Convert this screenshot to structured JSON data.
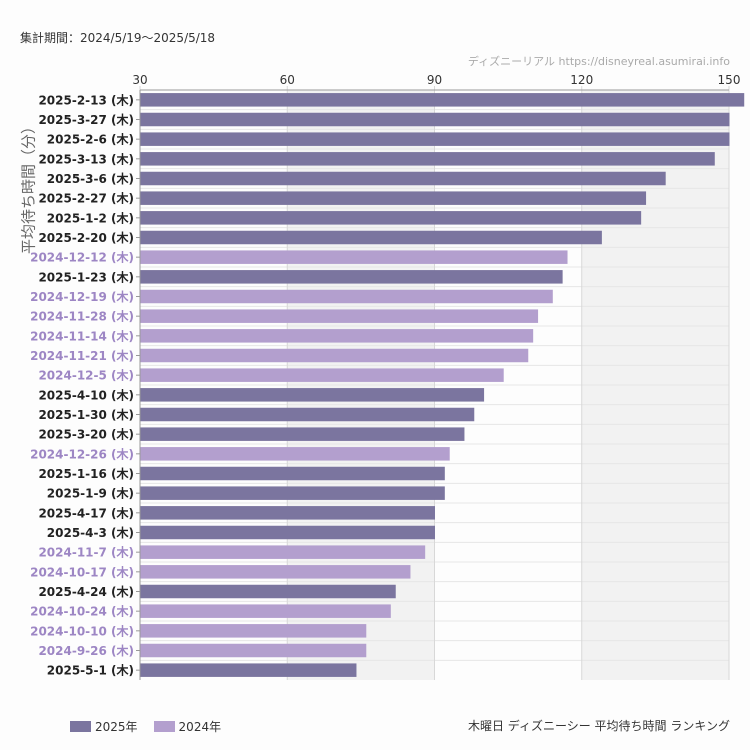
{
  "header": {
    "period": "集計期間：2024/5/19〜2025/5/18",
    "source": "ディズニーリアル  https://disneyreal.asumirai.info"
  },
  "footer": {
    "title": "木曜日 ディズニーシー 平均待ち時間 ランキング"
  },
  "colors": {
    "y2025": "#7b759f",
    "y2024": "#b39fce",
    "band": "#f2f2f2",
    "grid": "#d8d8d8"
  },
  "chart_data": {
    "type": "bar",
    "orientation": "horizontal",
    "ylabel": "平均待ち時間（分）",
    "xlim": [
      30,
      150
    ],
    "xticks": [
      30,
      60,
      90,
      120,
      150
    ],
    "legend": [
      {
        "name": "2025年",
        "color": "#7b759f"
      },
      {
        "name": "2024年",
        "color": "#b39fce"
      }
    ],
    "legend_position": "bottom-left",
    "bars": [
      {
        "label": "2025-2-13 (木)",
        "value": 153,
        "year": "2025"
      },
      {
        "label": "2025-3-27 (木)",
        "value": 150,
        "year": "2025"
      },
      {
        "label": "2025-2-6 (木)",
        "value": 150,
        "year": "2025"
      },
      {
        "label": "2025-3-13 (木)",
        "value": 147,
        "year": "2025"
      },
      {
        "label": "2025-3-6 (木)",
        "value": 137,
        "year": "2025"
      },
      {
        "label": "2025-2-27 (木)",
        "value": 133,
        "year": "2025"
      },
      {
        "label": "2025-1-2 (木)",
        "value": 132,
        "year": "2025"
      },
      {
        "label": "2025-2-20 (木)",
        "value": 124,
        "year": "2025"
      },
      {
        "label": "2024-12-12 (木)",
        "value": 117,
        "year": "2024"
      },
      {
        "label": "2025-1-23 (木)",
        "value": 116,
        "year": "2025"
      },
      {
        "label": "2024-12-19 (木)",
        "value": 114,
        "year": "2024"
      },
      {
        "label": "2024-11-28 (木)",
        "value": 111,
        "year": "2024"
      },
      {
        "label": "2024-11-14 (木)",
        "value": 110,
        "year": "2024"
      },
      {
        "label": "2024-11-21 (木)",
        "value": 109,
        "year": "2024"
      },
      {
        "label": "2024-12-5 (木)",
        "value": 104,
        "year": "2024"
      },
      {
        "label": "2025-4-10 (木)",
        "value": 100,
        "year": "2025"
      },
      {
        "label": "2025-1-30 (木)",
        "value": 98,
        "year": "2025"
      },
      {
        "label": "2025-3-20 (木)",
        "value": 96,
        "year": "2025"
      },
      {
        "label": "2024-12-26 (木)",
        "value": 93,
        "year": "2024"
      },
      {
        "label": "2025-1-16 (木)",
        "value": 92,
        "year": "2025"
      },
      {
        "label": "2025-1-9 (木)",
        "value": 92,
        "year": "2025"
      },
      {
        "label": "2025-4-17 (木)",
        "value": 90,
        "year": "2025"
      },
      {
        "label": "2025-4-3 (木)",
        "value": 90,
        "year": "2025"
      },
      {
        "label": "2024-11-7 (木)",
        "value": 88,
        "year": "2024"
      },
      {
        "label": "2024-10-17 (木)",
        "value": 85,
        "year": "2024"
      },
      {
        "label": "2025-4-24 (木)",
        "value": 82,
        "year": "2025"
      },
      {
        "label": "2024-10-24 (木)",
        "value": 81,
        "year": "2024"
      },
      {
        "label": "2024-10-10 (木)",
        "value": 76,
        "year": "2024"
      },
      {
        "label": "2024-9-26 (木)",
        "value": 76,
        "year": "2024"
      },
      {
        "label": "2025-5-1 (木)",
        "value": 74,
        "year": "2025"
      }
    ]
  }
}
